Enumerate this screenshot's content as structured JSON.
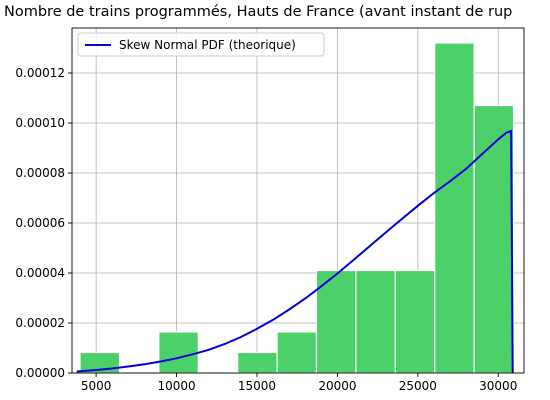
{
  "chart_data": {
    "type": "bar",
    "title": "Nombre de trains programmés, Hauts de France (avant instant de rup",
    "xlabel": "",
    "ylabel": "",
    "xlim": [
      3500,
      31600
    ],
    "ylim": [
      0,
      0.000138
    ],
    "grid": true,
    "x_ticks": [
      5000,
      10000,
      15000,
      20000,
      25000,
      30000
    ],
    "y_ticks": [
      0.0,
      2e-05,
      4e-05,
      6e-05,
      8e-05,
      0.0001,
      0.00012
    ],
    "x_tick_labels": [
      "5000",
      "10000",
      "15000",
      "20000",
      "25000",
      "30000"
    ],
    "y_tick_labels": [
      "0.00000",
      "0.00002",
      "0.00004",
      "0.00006",
      "0.00008",
      "0.00010",
      "0.00012"
    ],
    "histogram": {
      "color": "#4cd068",
      "bins": [
        {
          "x0": 4000,
          "x1": 6450,
          "density": 8.2e-06
        },
        {
          "x0": 6450,
          "x1": 8900,
          "density": 0.0
        },
        {
          "x0": 8900,
          "x1": 11350,
          "density": 1.64e-05
        },
        {
          "x0": 11350,
          "x1": 13800,
          "density": 0.0
        },
        {
          "x0": 13800,
          "x1": 16250,
          "density": 8.2e-06
        },
        {
          "x0": 16250,
          "x1": 18700,
          "density": 1.64e-05
        },
        {
          "x0": 18700,
          "x1": 21150,
          "density": 4.1e-05
        },
        {
          "x0": 21150,
          "x1": 23600,
          "density": 4.1e-05
        },
        {
          "x0": 23600,
          "x1": 26050,
          "density": 4.1e-05
        },
        {
          "x0": 26050,
          "x1": 28500,
          "density": 0.000132
        },
        {
          "x0": 28500,
          "x1": 30950,
          "density": 0.000107
        }
      ]
    },
    "series": [
      {
        "name": "Skew Normal PDF (theorique)",
        "type": "line",
        "color": "#0000dd",
        "x": [
          3800,
          5000,
          6000,
          7000,
          8000,
          9000,
          10000,
          11000,
          12000,
          13000,
          14000,
          15000,
          16000,
          17000,
          18000,
          19000,
          20000,
          21000,
          22000,
          23000,
          24000,
          25000,
          26000,
          27000,
          28000,
          29000,
          30000,
          30500,
          30800,
          30850,
          30900
        ],
        "y": [
          6e-07,
          1.2e-06,
          1.8e-06,
          2.6e-06,
          3.5e-06,
          4.6e-06,
          5.9e-06,
          7.5e-06,
          9.3e-06,
          1.16e-05,
          1.44e-05,
          1.77e-05,
          2.13e-05,
          2.54e-05,
          2.98e-05,
          3.47e-05,
          3.98e-05,
          4.52e-05,
          5.07e-05,
          5.62e-05,
          6.16e-05,
          6.69e-05,
          7.2e-05,
          7.67e-05,
          8.17e-05,
          8.76e-05,
          9.35e-05,
          9.61e-05,
          9.68e-05,
          5e-05,
          0.0
        ]
      }
    ],
    "legend": {
      "position": "top-left",
      "entries": [
        "Skew Normal PDF (theorique)"
      ]
    }
  }
}
